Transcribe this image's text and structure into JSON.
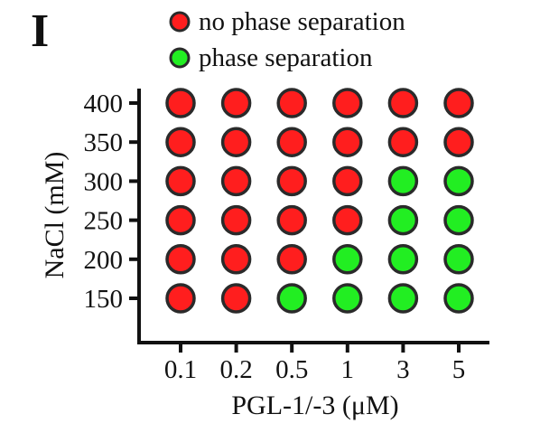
{
  "panel_label": "I",
  "colors": {
    "no_phase_separation": "#ff1e1e",
    "phase_separation": "#22ee22",
    "marker_edge": "#2a2a2a",
    "axis": "#111111"
  },
  "chart_data": {
    "type": "scatter",
    "xlabel": "PGL-1/-3 (μM)",
    "ylabel": "NaCl (mM)",
    "x_categories": [
      "0.1",
      "0.2",
      "0.5",
      "1",
      "3",
      "5"
    ],
    "y_ticks": [
      "150",
      "200",
      "250",
      "300",
      "350",
      "400"
    ],
    "legend": [
      {
        "name": "no phase separation",
        "status": "no_phase_separation"
      },
      {
        "name": "phase separation",
        "status": "phase_separation"
      }
    ],
    "legend_position": "top",
    "grid": false,
    "points": [
      {
        "x": "0.1",
        "y": 150,
        "status": "no_phase_separation"
      },
      {
        "x": "0.2",
        "y": 150,
        "status": "no_phase_separation"
      },
      {
        "x": "0.5",
        "y": 150,
        "status": "phase_separation"
      },
      {
        "x": "1",
        "y": 150,
        "status": "phase_separation"
      },
      {
        "x": "3",
        "y": 150,
        "status": "phase_separation"
      },
      {
        "x": "5",
        "y": 150,
        "status": "phase_separation"
      },
      {
        "x": "0.1",
        "y": 200,
        "status": "no_phase_separation"
      },
      {
        "x": "0.2",
        "y": 200,
        "status": "no_phase_separation"
      },
      {
        "x": "0.5",
        "y": 200,
        "status": "no_phase_separation"
      },
      {
        "x": "1",
        "y": 200,
        "status": "phase_separation"
      },
      {
        "x": "3",
        "y": 200,
        "status": "phase_separation"
      },
      {
        "x": "5",
        "y": 200,
        "status": "phase_separation"
      },
      {
        "x": "0.1",
        "y": 250,
        "status": "no_phase_separation"
      },
      {
        "x": "0.2",
        "y": 250,
        "status": "no_phase_separation"
      },
      {
        "x": "0.5",
        "y": 250,
        "status": "no_phase_separation"
      },
      {
        "x": "1",
        "y": 250,
        "status": "no_phase_separation"
      },
      {
        "x": "3",
        "y": 250,
        "status": "phase_separation"
      },
      {
        "x": "5",
        "y": 250,
        "status": "phase_separation"
      },
      {
        "x": "0.1",
        "y": 300,
        "status": "no_phase_separation"
      },
      {
        "x": "0.2",
        "y": 300,
        "status": "no_phase_separation"
      },
      {
        "x": "0.5",
        "y": 300,
        "status": "no_phase_separation"
      },
      {
        "x": "1",
        "y": 300,
        "status": "no_phase_separation"
      },
      {
        "x": "3",
        "y": 300,
        "status": "phase_separation"
      },
      {
        "x": "5",
        "y": 300,
        "status": "phase_separation"
      },
      {
        "x": "0.1",
        "y": 350,
        "status": "no_phase_separation"
      },
      {
        "x": "0.2",
        "y": 350,
        "status": "no_phase_separation"
      },
      {
        "x": "0.5",
        "y": 350,
        "status": "no_phase_separation"
      },
      {
        "x": "1",
        "y": 350,
        "status": "no_phase_separation"
      },
      {
        "x": "3",
        "y": 350,
        "status": "no_phase_separation"
      },
      {
        "x": "5",
        "y": 350,
        "status": "no_phase_separation"
      },
      {
        "x": "0.1",
        "y": 400,
        "status": "no_phase_separation"
      },
      {
        "x": "0.2",
        "y": 400,
        "status": "no_phase_separation"
      },
      {
        "x": "0.5",
        "y": 400,
        "status": "no_phase_separation"
      },
      {
        "x": "1",
        "y": 400,
        "status": "no_phase_separation"
      },
      {
        "x": "3",
        "y": 400,
        "status": "no_phase_separation"
      },
      {
        "x": "5",
        "y": 400,
        "status": "no_phase_separation"
      }
    ]
  }
}
